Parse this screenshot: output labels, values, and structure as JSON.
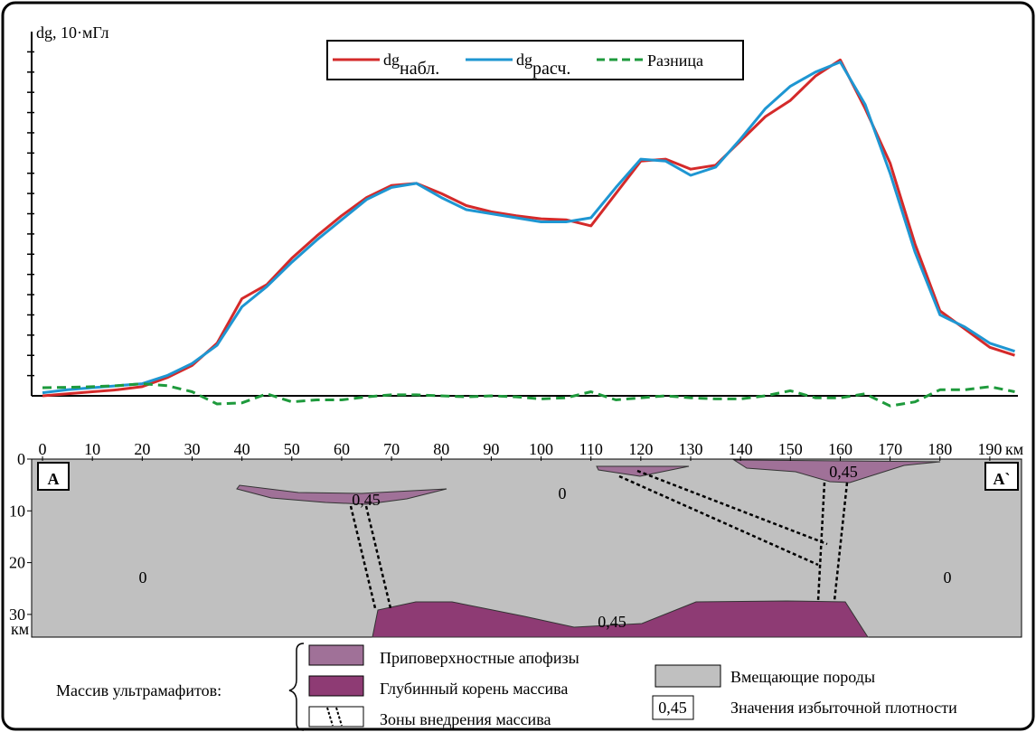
{
  "chart_data": {
    "type": "line",
    "y_label": "dg, 10·мГл",
    "x_unit": "км",
    "x": [
      0,
      5,
      10,
      15,
      20,
      25,
      30,
      35,
      40,
      45,
      50,
      55,
      60,
      65,
      70,
      75,
      80,
      85,
      90,
      95,
      100,
      105,
      110,
      115,
      120,
      125,
      130,
      135,
      140,
      145,
      150,
      155,
      160,
      165,
      170,
      175,
      180,
      185,
      190,
      195
    ],
    "xlim": [
      -2,
      196
    ],
    "xticks": [
      0,
      10,
      20,
      30,
      40,
      50,
      60,
      70,
      80,
      90,
      100,
      110,
      120,
      130,
      140,
      150,
      160,
      170,
      180,
      190
    ],
    "ylim": [
      0,
      18
    ],
    "yticks": [
      1,
      2,
      3,
      4,
      5,
      6,
      7,
      8,
      9,
      10,
      11,
      12,
      13,
      14,
      15,
      16,
      17
    ],
    "series": [
      {
        "name": "dg",
        "name_sub": "набл.",
        "color": "#d42a2a",
        "dashed": false,
        "values": [
          0,
          0.1,
          0.2,
          0.3,
          0.45,
          0.9,
          1.5,
          2.6,
          4.8,
          5.5,
          6.8,
          7.9,
          8.9,
          9.8,
          10.4,
          10.5,
          10.0,
          9.4,
          9.1,
          8.9,
          8.75,
          8.7,
          8.4,
          10.0,
          11.6,
          11.7,
          11.2,
          11.4,
          12.6,
          13.8,
          14.6,
          15.8,
          16.6,
          14.2,
          11.5,
          7.5,
          4.2,
          3.3,
          2.4,
          2.0
        ]
      },
      {
        "name": "dg",
        "name_sub": "расч.",
        "color": "#1e96d2",
        "dashed": false,
        "values": [
          0.15,
          0.3,
          0.4,
          0.5,
          0.6,
          1.0,
          1.6,
          2.5,
          4.4,
          5.4,
          6.6,
          7.7,
          8.7,
          9.7,
          10.3,
          10.5,
          9.8,
          9.2,
          9.0,
          8.8,
          8.6,
          8.6,
          8.8,
          10.3,
          11.7,
          11.6,
          10.9,
          11.3,
          12.7,
          14.2,
          15.3,
          16.0,
          16.5,
          14.4,
          11.0,
          7.1,
          4.0,
          3.4,
          2.6,
          2.2
        ]
      },
      {
        "name": "Разница",
        "color": "#1e9a3c",
        "dashed": true,
        "values": [
          0.4,
          0.42,
          0.45,
          0.5,
          0.6,
          0.5,
          0.2,
          -0.4,
          -0.35,
          0.1,
          -0.3,
          -0.2,
          -0.2,
          -0.05,
          0.05,
          0.05,
          0.0,
          -0.05,
          0.0,
          -0.05,
          -0.15,
          -0.1,
          0.2,
          -0.2,
          -0.1,
          0.0,
          -0.1,
          -0.15,
          -0.15,
          0.0,
          0.25,
          -0.1,
          -0.1,
          0.1,
          -0.5,
          -0.3,
          0.3,
          0.3,
          0.45,
          0.2
        ]
      }
    ]
  },
  "section": {
    "start": "A",
    "end": "A`",
    "depth_ticks": [
      0,
      10,
      20,
      30
    ],
    "depth_unit": "км",
    "densities": [
      "0,45",
      "0",
      "0",
      "0",
      "0,45",
      "0,45"
    ]
  },
  "legend": {
    "group": "Массив ультрамафитов:",
    "items": [
      "Приповерхностные апофизы",
      "Глубинный корень массива",
      "Зоны внедрения массива"
    ],
    "host": "Вмещающие породы",
    "value_box": "0,45",
    "value_text": "Значения избыточной плотности"
  }
}
